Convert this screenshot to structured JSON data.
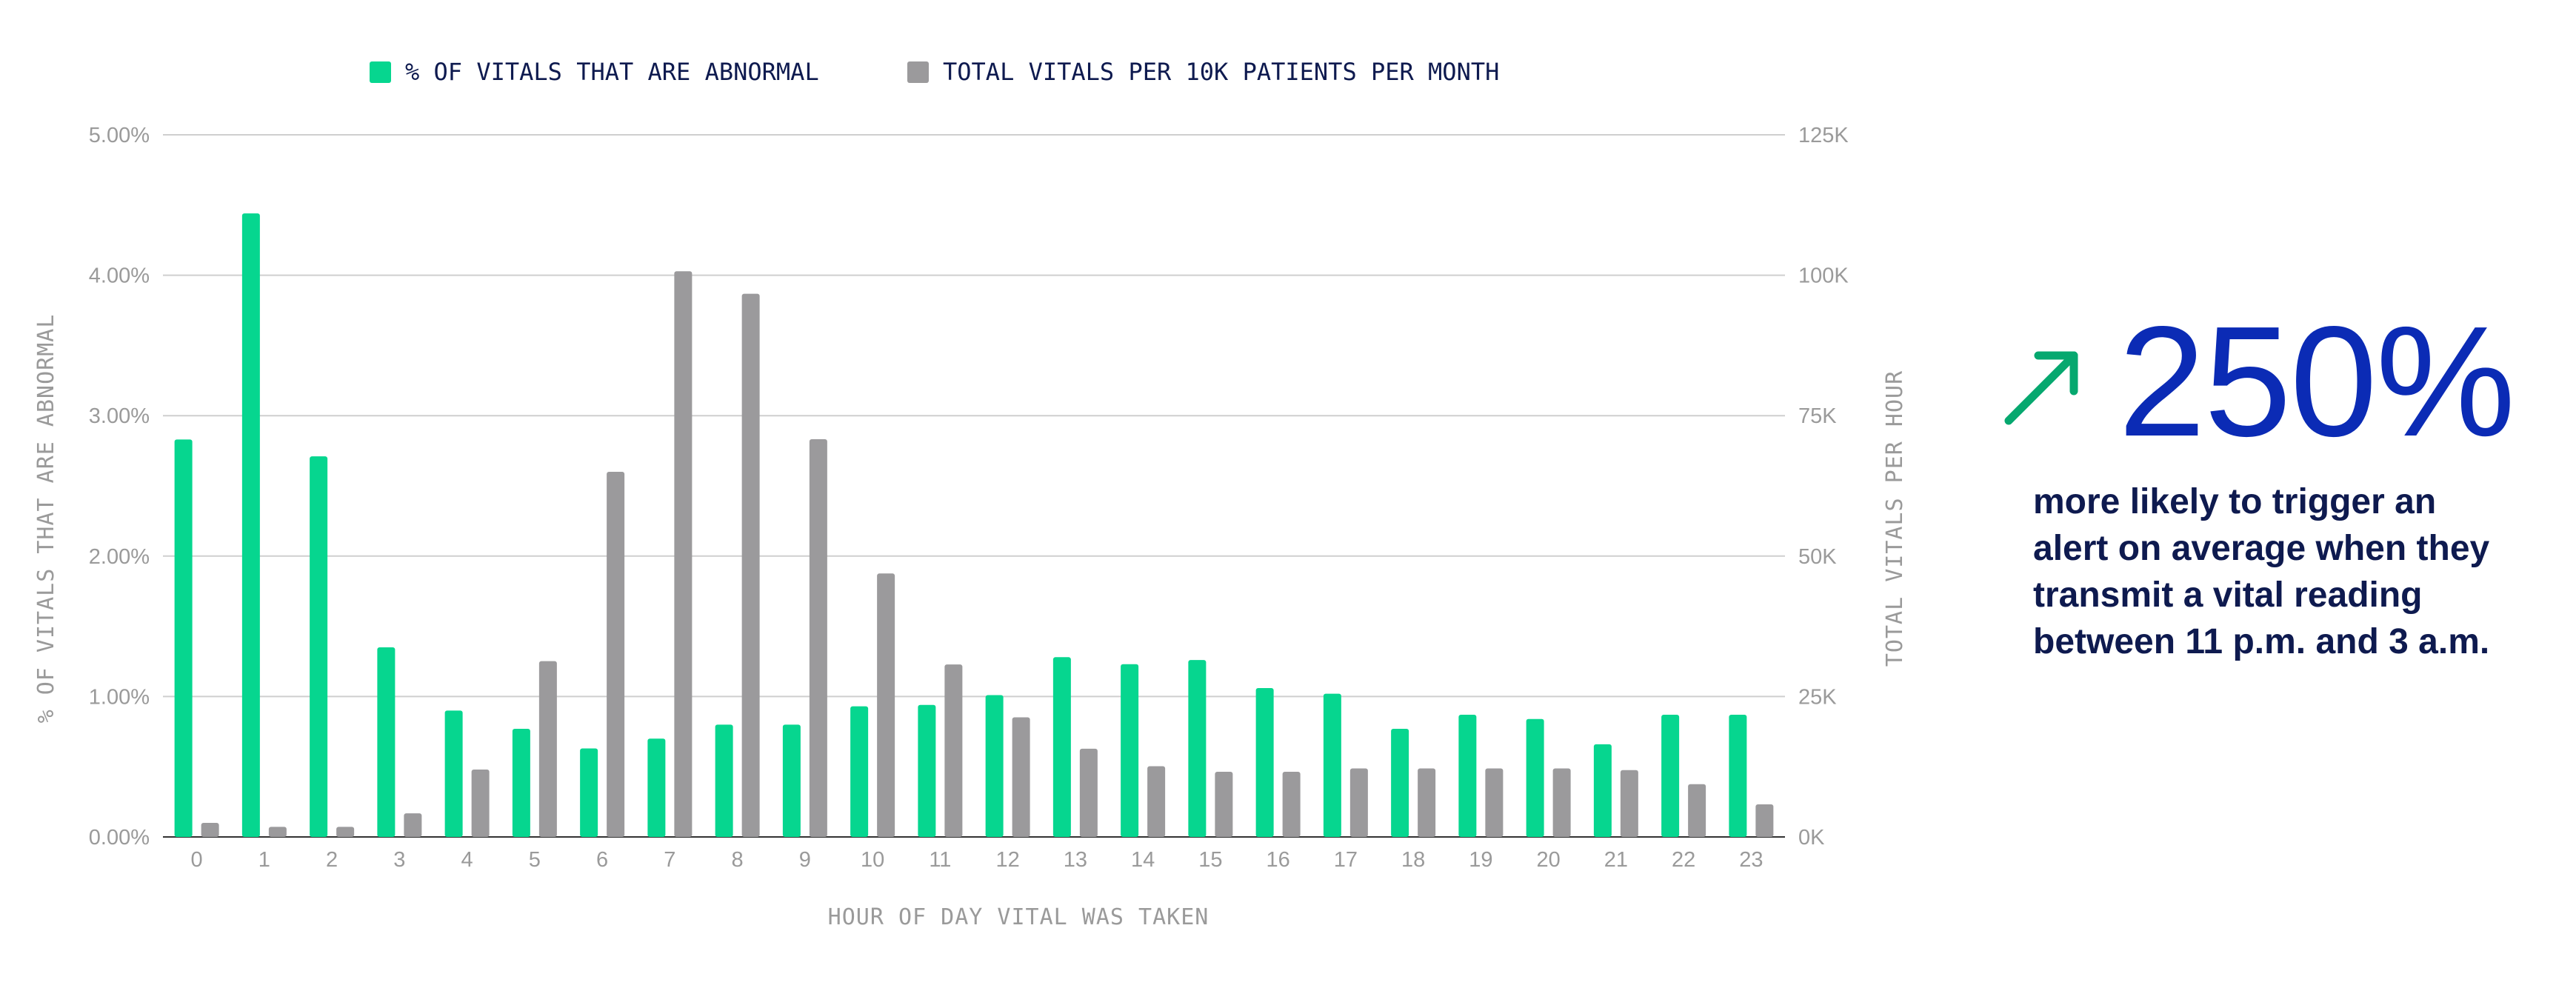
{
  "chart_data": {
    "type": "bar",
    "xlabel": "HOUR OF DAY VITAL WAS TAKEN",
    "ylabel": "% OF VITALS THAT ARE ABNORMAL",
    "y2label": "TOTAL VITALS PER HOUR",
    "categories": [
      "0",
      "1",
      "2",
      "3",
      "4",
      "5",
      "6",
      "7",
      "8",
      "9",
      "10",
      "11",
      "12",
      "13",
      "14",
      "15",
      "16",
      "17",
      "18",
      "19",
      "20",
      "21",
      "22",
      "23"
    ],
    "ylim": [
      0,
      5
    ],
    "y2lim": [
      0,
      125000
    ],
    "y_ticks": [
      "0.00%",
      "1.00%",
      "2.00%",
      "3.00%",
      "4.00%",
      "5.00%"
    ],
    "y2_ticks": [
      "0K",
      "25K",
      "50K",
      "75K",
      "100K",
      "125K"
    ],
    "grid": true,
    "legend_position": "top",
    "series": [
      {
        "name": "% OF VITALS THAT ARE ABNORMAL",
        "axis": "left",
        "color": "#06d68f",
        "values": [
          2.83,
          4.44,
          2.71,
          1.35,
          0.9,
          0.77,
          0.63,
          0.7,
          0.8,
          0.8,
          0.93,
          0.94,
          1.01,
          1.28,
          1.23,
          1.26,
          1.06,
          1.02,
          0.77,
          0.87,
          0.84,
          0.66,
          0.87,
          0.87
        ]
      },
      {
        "name": "TOTAL VITALS PER 10K PATIENTS PER MONTH",
        "axis": "right",
        "color": "#9b9a9c",
        "values": [
          2500,
          1800,
          1800,
          4200,
          12000,
          31300,
          65000,
          100700,
          96700,
          70800,
          46900,
          30700,
          21300,
          15700,
          12600,
          11600,
          11600,
          12200,
          12200,
          12200,
          12200,
          11900,
          9400,
          5800
        ]
      }
    ]
  },
  "callout": {
    "value": "250%",
    "text": "more likely to trigger an alert on average when they transmit a vital reading between 11 p.m. and 3 a.m.",
    "arrow_icon": "arrow-up-right-icon",
    "arrow_color": "#06a86f",
    "value_color": "#0b2bb5"
  }
}
